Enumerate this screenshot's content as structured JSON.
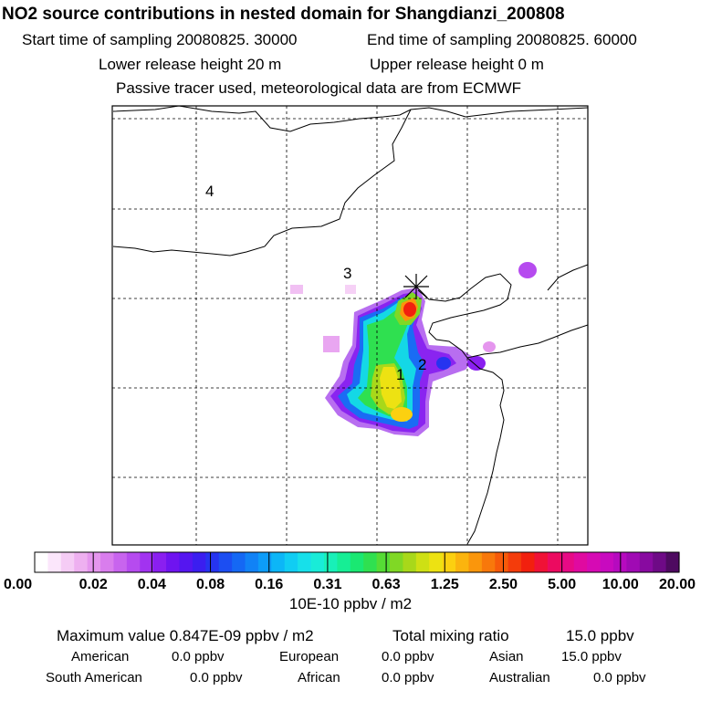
{
  "header": {
    "title": "NO2 source contributions in nested domain for Shangdianzi_200808",
    "start_time": "Start time of sampling 20080825. 30000",
    "end_time": "End time of sampling 20080825. 60000",
    "lower_height": "Lower release height   20 m",
    "upper_height": "Upper release height    0 m",
    "tracer_note": "Passive tracer used, meteorological data are from ECMWF"
  },
  "chart_data": {
    "type": "heatmap",
    "title": "NO2 source contributions in nested domain for Shangdianzi_200808",
    "colorbar": {
      "tick_labels": [
        "0.00",
        "0.02",
        "0.04",
        "0.08",
        "0.16",
        "0.31",
        "0.63",
        "1.25",
        "2.50",
        "5.00",
        "10.00",
        "20.00"
      ],
      "unit_label": "10E-10 ppbv / m2",
      "colors": [
        "#ffffff",
        "#fbe6fb",
        "#f5ccf5",
        "#eeb0f0",
        "#e596ee",
        "#d97ded",
        "#c864ee",
        "#b64bef",
        "#a233f0",
        "#8a1ff0",
        "#6f14f0",
        "#5516f0",
        "#3b1ef0",
        "#2634f0",
        "#1c4ef2",
        "#1568f4",
        "#1182f6",
        "#0d9cf8",
        "#0cb6f7",
        "#10cdf3",
        "#17e0ea",
        "#19ecd8",
        "#18f0b8",
        "#16ee95",
        "#1ae872",
        "#2fe050",
        "#55dc35",
        "#80d825",
        "#a8d81a",
        "#cee014",
        "#ede212",
        "#fcd010",
        "#fbb40e",
        "#fa960c",
        "#f8780b",
        "#f65a0a",
        "#f43c0b",
        "#f2200e",
        "#f01236",
        "#ec0a60",
        "#e70a85",
        "#e00aa0",
        "#d60ab4",
        "#c80abf",
        "#b60abf",
        "#a00ab4",
        "#880aa0",
        "#6e0a86",
        "#4e0a60"
      ]
    },
    "markers": [
      {
        "label": "1"
      },
      {
        "label": "2"
      },
      {
        "label": "3"
      },
      {
        "label": "4"
      }
    ],
    "receptor": "Shangdianzi",
    "max_value_ppbv_per_m2": 8.47e-10,
    "total_mixing_ratio_ppbv": 15.0
  },
  "footer": {
    "max_value": "Maximum value  0.847E-09 ppbv / m2",
    "total_mixing": "Total mixing ratio",
    "total_value": "15.0 ppbv",
    "regions": [
      {
        "name": "American",
        "value": "0.0 ppbv"
      },
      {
        "name": "European",
        "value": "0.0 ppbv"
      },
      {
        "name": "Asian",
        "value": "15.0 ppbv"
      },
      {
        "name": "South American",
        "value": "0.0 ppbv"
      },
      {
        "name": "African",
        "value": "0.0 ppbv"
      },
      {
        "name": "Australian",
        "value": "0.0 ppbv"
      }
    ]
  }
}
